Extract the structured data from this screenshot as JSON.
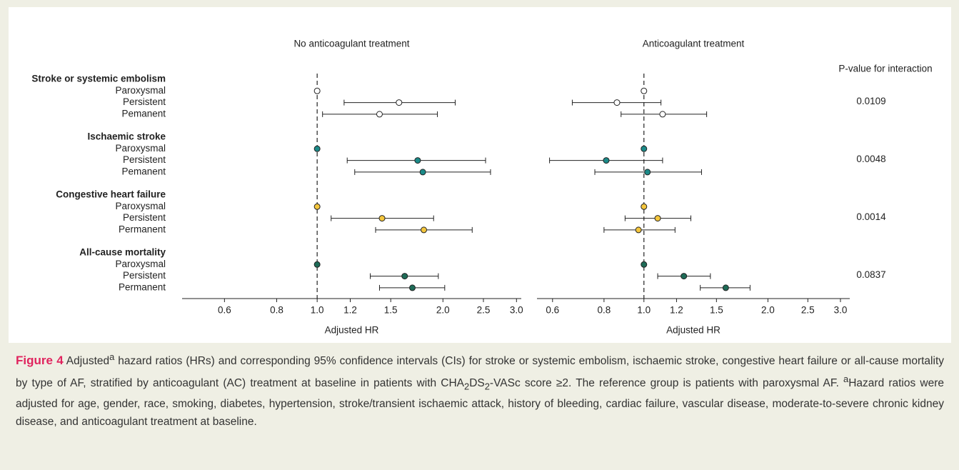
{
  "chart_data": [
    {
      "type": "forest",
      "title": "No anticoagulant treatment",
      "xlabel": "Adjusted HR",
      "log_x": true,
      "xlim": [
        0.475,
        3.08
      ],
      "xticks": [
        0.6,
        0.8,
        {
          "value": 1,
          "label": "1.0"
        },
        1.2,
        1.5,
        {
          "value": 2,
          "label": "2.0"
        },
        2.5,
        {
          "value": 3,
          "label": "3.0"
        }
      ],
      "reference_line": 1,
      "groups": [
        {
          "name": "Stroke or systemic embolism",
          "color": "#ffffff",
          "categories": [
            "Paroxysmal",
            "Persistent",
            "Pemanent"
          ],
          "values": [
            1,
            1.57,
            1.41
          ],
          "lower": [
            null,
            1.16,
            1.03
          ],
          "upper": [
            null,
            2.14,
            1.94
          ]
        },
        {
          "name": "Ischaemic stroke",
          "color": "#1b8a88",
          "categories": [
            "Paroxysmal",
            "Persistent",
            "Pemanent"
          ],
          "values": [
            1,
            1.74,
            1.79
          ],
          "lower": [
            null,
            1.18,
            1.23
          ],
          "upper": [
            null,
            2.53,
            2.6
          ]
        },
        {
          "name": "Congestive heart failure",
          "color": "#f4c63d",
          "categories": [
            "Paroxysmal",
            "Persistent",
            "Permanent"
          ],
          "values": [
            1,
            1.43,
            1.8
          ],
          "lower": [
            null,
            1.08,
            1.38
          ],
          "upper": [
            null,
            1.9,
            2.35
          ]
        },
        {
          "name": "All-cause mortality",
          "color": "#1e6b57",
          "categories": [
            "Paroxysmal",
            "Persistent",
            "Permanent"
          ],
          "values": [
            1,
            1.62,
            1.69
          ],
          "lower": [
            null,
            1.34,
            1.41
          ],
          "upper": [
            null,
            1.95,
            2.02
          ]
        }
      ]
    },
    {
      "type": "forest",
      "title": "Anticoagulant treatment",
      "xlabel": "Adjusted HR",
      "log_x": true,
      "xlim": [
        0.55,
        3.16
      ],
      "xticks": [
        0.6,
        0.8,
        {
          "value": 1,
          "label": "1.0"
        },
        1.2,
        1.5,
        {
          "value": 2,
          "label": "2.0"
        },
        2.5,
        {
          "value": 3,
          "label": "3.0"
        }
      ],
      "reference_line": 1,
      "groups": [
        {
          "color": "#ffffff",
          "values": [
            1,
            0.86,
            1.11
          ],
          "lower": [
            null,
            0.67,
            0.88
          ],
          "upper": [
            null,
            1.1,
            1.42
          ]
        },
        {
          "color": "#1b8a88",
          "values": [
            1,
            0.81,
            1.02
          ],
          "lower": [
            null,
            0.59,
            0.76
          ],
          "upper": [
            null,
            1.11,
            1.38
          ]
        },
        {
          "color": "#f4c63d",
          "values": [
            1,
            1.08,
            0.97
          ],
          "lower": [
            null,
            0.9,
            0.8
          ],
          "upper": [
            null,
            1.3,
            1.19
          ]
        },
        {
          "color": "#1e6b57",
          "values": [
            1,
            1.25,
            1.58
          ],
          "lower": [
            null,
            1.08,
            1.37
          ],
          "upper": [
            null,
            1.45,
            1.81
          ]
        }
      ]
    }
  ],
  "interaction": {
    "header": "P-value for interaction",
    "values": [
      0.0109,
      0.0048,
      0.0014,
      0.0837
    ]
  },
  "caption": {
    "label": "Figure 4",
    "text": [
      "Adjusted",
      "a",
      " hazard ratios (HRs) and corresponding 95% confidence intervals (CIs) for stroke or systemic embolism, ischaemic stroke, congestive heart failure or all-cause mortality by type of AF, stratified by anticoagulant (AC) treatment at baseline in patients with CHA",
      "2",
      "DS",
      "2",
      "-VASc score ≥2. The reference group is patients with paroxysmal AF. ",
      "a",
      "Hazard ratios were adjusted for age, gender, race, smoking, diabetes, hypertension, stroke/transient ischaemic attack, history of bleeding, cardiac failure, vascular disease, moderate-to-severe chronic kidney disease, and anticoagulant treatment at baseline."
    ]
  }
}
